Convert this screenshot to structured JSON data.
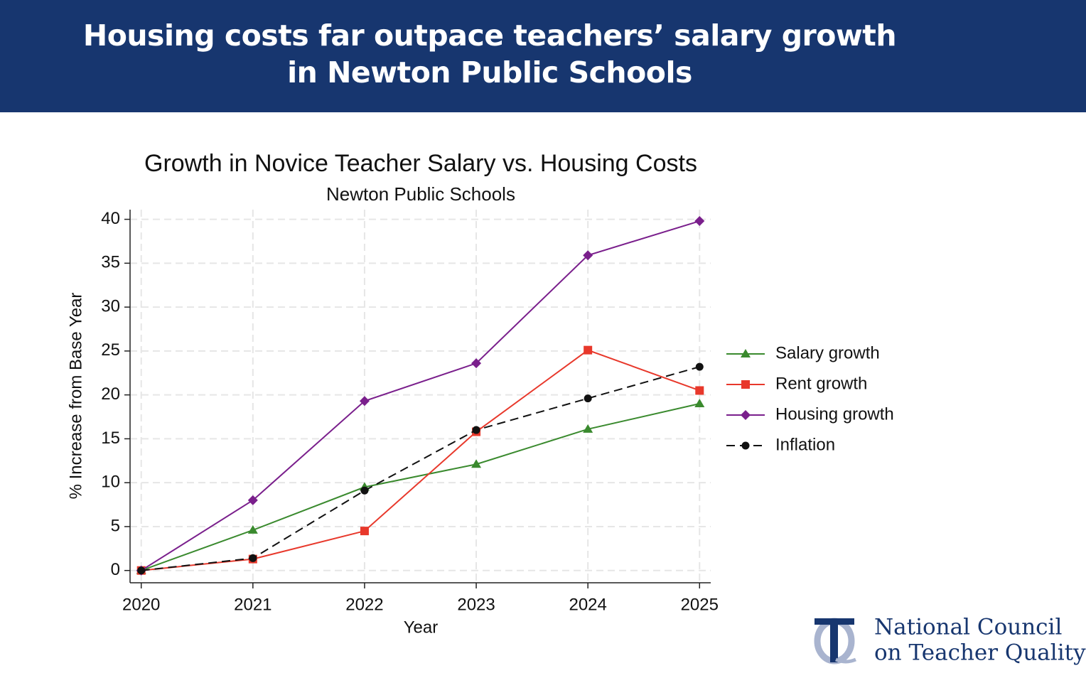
{
  "header": {
    "title": "Housing costs far outpace teachers’ salary growth in Newton Public Schools"
  },
  "chart_data": {
    "type": "line",
    "title": "Growth in Novice Teacher Salary vs. Housing Costs",
    "subtitle": "Newton Public Schools",
    "x_label": "Year",
    "y_label": "% Increase from Base Year",
    "x": [
      2020,
      2021,
      2022,
      2023,
      2024,
      2025
    ],
    "xlim": [
      2019.9,
      2025.1
    ],
    "xticks": [
      2020,
      2021,
      2022,
      2023,
      2024,
      2025
    ],
    "ylim": [
      -1.4,
      41.1
    ],
    "yticks": [
      0,
      5,
      10,
      15,
      20,
      25,
      30,
      35,
      40
    ],
    "grid": true,
    "legend": "right",
    "series": [
      {
        "name": "Salary growth",
        "color": "#3a8a2e",
        "marker": "triangle",
        "linestyle": "solid",
        "values": [
          0,
          4.6,
          9.5,
          12.1,
          16.1,
          19.0
        ]
      },
      {
        "name": "Rent growth",
        "color": "#e8382b",
        "marker": "square",
        "linestyle": "solid",
        "values": [
          0,
          1.3,
          4.5,
          15.8,
          25.1,
          20.5
        ]
      },
      {
        "name": "Housing growth",
        "color": "#7a1f8c",
        "marker": "diamond",
        "linestyle": "solid",
        "values": [
          0,
          8.0,
          19.3,
          23.6,
          35.9,
          39.8
        ]
      },
      {
        "name": "Inflation",
        "color": "#111111",
        "marker": "circle",
        "linestyle": "dashed",
        "values": [
          0,
          1.4,
          9.1,
          16.0,
          19.6,
          23.2
        ]
      }
    ]
  },
  "logo": {
    "lines": [
      "National Council",
      "on Teacher Quality"
    ]
  }
}
